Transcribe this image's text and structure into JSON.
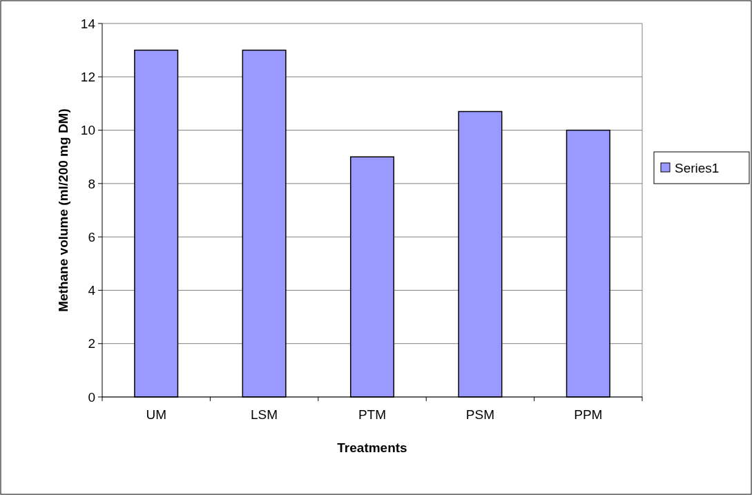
{
  "chart_data": {
    "type": "bar",
    "xlabel": "Treatments",
    "ylabel": "Methane volume (ml/200 mg DM)",
    "categories": [
      "UM",
      "LSM",
      "PTM",
      "PSM",
      "PPM"
    ],
    "series": [
      {
        "name": "Series1",
        "color": "#9999ff",
        "values": [
          13,
          13,
          9,
          10.7,
          10
        ]
      }
    ],
    "ylim": [
      0,
      14
    ],
    "yticks": [
      0,
      2,
      4,
      6,
      8,
      10,
      12,
      14
    ],
    "grid": "y",
    "legend": "right"
  }
}
